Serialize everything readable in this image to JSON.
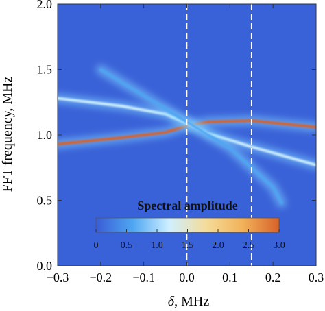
{
  "chart_data": {
    "type": "heatmap",
    "title": "",
    "xlabel_symbol": "δ",
    "xlabel_unit": ", MHz",
    "ylabel": "FFT frequency, MHz",
    "xlim": [
      -0.3,
      0.3
    ],
    "ylim": [
      0.0,
      2.0
    ],
    "x_ticks": [
      "−0.3",
      "−0.2",
      "−0.1",
      "0.0",
      "0.1",
      "0.2",
      "0.3"
    ],
    "x_tick_values": [
      -0.3,
      -0.2,
      -0.1,
      0.0,
      0.1,
      0.2,
      0.3
    ],
    "y_ticks": [
      "0.0",
      "0.5",
      "1.0",
      "1.5",
      "2.0"
    ],
    "y_tick_values": [
      0.0,
      0.5,
      1.0,
      1.5,
      2.0
    ],
    "background_color": "#3a62d8",
    "vertical_markers": [
      0.0,
      0.15
    ],
    "series": [
      {
        "points": [
          [
            -0.3,
            0.93
          ],
          [
            -0.15,
            0.98
          ],
          [
            -0.05,
            1.02
          ],
          [
            0.0,
            1.07
          ],
          [
            0.05,
            1.1
          ],
          [
            0.15,
            1.11
          ],
          [
            0.3,
            1.06
          ]
        ],
        "peak_amplitude": 2.8
      },
      {
        "points": [
          [
            -0.3,
            1.28
          ],
          [
            -0.15,
            1.22
          ],
          [
            -0.05,
            1.16
          ],
          [
            0.0,
            1.09
          ],
          [
            0.05,
            1.01
          ],
          [
            0.15,
            0.91
          ],
          [
            0.3,
            0.77
          ]
        ],
        "peak_amplitude": 1.0
      },
      {
        "points": [
          [
            -0.2,
            1.5
          ],
          [
            -0.1,
            1.3
          ],
          [
            0.0,
            1.1
          ],
          [
            0.1,
            0.9
          ],
          [
            0.2,
            0.6
          ],
          [
            0.22,
            0.48
          ]
        ],
        "peak_amplitude": 0.6
      }
    ],
    "colorbar": {
      "title": "Spectral amplitude",
      "min": 0.0,
      "max": 3.0,
      "tick_values": [
        0.0,
        0.5,
        1.0,
        1.5,
        2.0,
        2.5,
        3.0
      ],
      "ticks": [
        "0",
        "0.5",
        "1.0",
        "1.5",
        "2.0",
        "2.5",
        "3.0"
      ],
      "colors": [
        "#3a5cd6",
        "#4ea6f2",
        "#cfefff",
        "#f4dc9a",
        "#f2b25a",
        "#d8622a"
      ]
    }
  }
}
